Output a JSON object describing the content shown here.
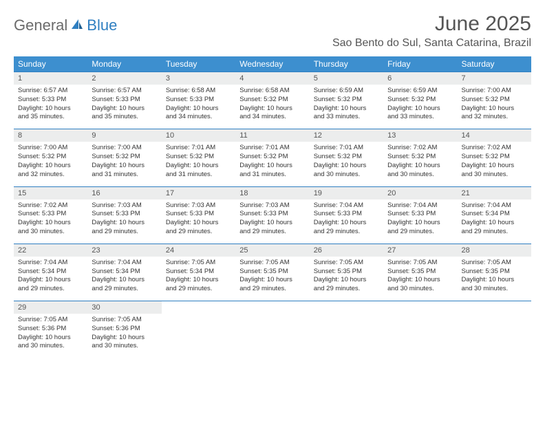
{
  "logo": {
    "text1": "General",
    "text2": "Blue"
  },
  "title": "June 2025",
  "location": "Sao Bento do Sul, Santa Catarina, Brazil",
  "header_bg": "#3d8fcf",
  "border_color": "#2f7fc1",
  "daynum_bg": "#eceded",
  "day_names": [
    "Sunday",
    "Monday",
    "Tuesday",
    "Wednesday",
    "Thursday",
    "Friday",
    "Saturday"
  ],
  "weeks": [
    [
      {
        "n": "1",
        "sr": "Sunrise: 6:57 AM",
        "ss": "Sunset: 5:33 PM",
        "d1": "Daylight: 10 hours",
        "d2": "and 35 minutes."
      },
      {
        "n": "2",
        "sr": "Sunrise: 6:57 AM",
        "ss": "Sunset: 5:33 PM",
        "d1": "Daylight: 10 hours",
        "d2": "and 35 minutes."
      },
      {
        "n": "3",
        "sr": "Sunrise: 6:58 AM",
        "ss": "Sunset: 5:33 PM",
        "d1": "Daylight: 10 hours",
        "d2": "and 34 minutes."
      },
      {
        "n": "4",
        "sr": "Sunrise: 6:58 AM",
        "ss": "Sunset: 5:32 PM",
        "d1": "Daylight: 10 hours",
        "d2": "and 34 minutes."
      },
      {
        "n": "5",
        "sr": "Sunrise: 6:59 AM",
        "ss": "Sunset: 5:32 PM",
        "d1": "Daylight: 10 hours",
        "d2": "and 33 minutes."
      },
      {
        "n": "6",
        "sr": "Sunrise: 6:59 AM",
        "ss": "Sunset: 5:32 PM",
        "d1": "Daylight: 10 hours",
        "d2": "and 33 minutes."
      },
      {
        "n": "7",
        "sr": "Sunrise: 7:00 AM",
        "ss": "Sunset: 5:32 PM",
        "d1": "Daylight: 10 hours",
        "d2": "and 32 minutes."
      }
    ],
    [
      {
        "n": "8",
        "sr": "Sunrise: 7:00 AM",
        "ss": "Sunset: 5:32 PM",
        "d1": "Daylight: 10 hours",
        "d2": "and 32 minutes."
      },
      {
        "n": "9",
        "sr": "Sunrise: 7:00 AM",
        "ss": "Sunset: 5:32 PM",
        "d1": "Daylight: 10 hours",
        "d2": "and 31 minutes."
      },
      {
        "n": "10",
        "sr": "Sunrise: 7:01 AM",
        "ss": "Sunset: 5:32 PM",
        "d1": "Daylight: 10 hours",
        "d2": "and 31 minutes."
      },
      {
        "n": "11",
        "sr": "Sunrise: 7:01 AM",
        "ss": "Sunset: 5:32 PM",
        "d1": "Daylight: 10 hours",
        "d2": "and 31 minutes."
      },
      {
        "n": "12",
        "sr": "Sunrise: 7:01 AM",
        "ss": "Sunset: 5:32 PM",
        "d1": "Daylight: 10 hours",
        "d2": "and 30 minutes."
      },
      {
        "n": "13",
        "sr": "Sunrise: 7:02 AM",
        "ss": "Sunset: 5:32 PM",
        "d1": "Daylight: 10 hours",
        "d2": "and 30 minutes."
      },
      {
        "n": "14",
        "sr": "Sunrise: 7:02 AM",
        "ss": "Sunset: 5:32 PM",
        "d1": "Daylight: 10 hours",
        "d2": "and 30 minutes."
      }
    ],
    [
      {
        "n": "15",
        "sr": "Sunrise: 7:02 AM",
        "ss": "Sunset: 5:33 PM",
        "d1": "Daylight: 10 hours",
        "d2": "and 30 minutes."
      },
      {
        "n": "16",
        "sr": "Sunrise: 7:03 AM",
        "ss": "Sunset: 5:33 PM",
        "d1": "Daylight: 10 hours",
        "d2": "and 29 minutes."
      },
      {
        "n": "17",
        "sr": "Sunrise: 7:03 AM",
        "ss": "Sunset: 5:33 PM",
        "d1": "Daylight: 10 hours",
        "d2": "and 29 minutes."
      },
      {
        "n": "18",
        "sr": "Sunrise: 7:03 AM",
        "ss": "Sunset: 5:33 PM",
        "d1": "Daylight: 10 hours",
        "d2": "and 29 minutes."
      },
      {
        "n": "19",
        "sr": "Sunrise: 7:04 AM",
        "ss": "Sunset: 5:33 PM",
        "d1": "Daylight: 10 hours",
        "d2": "and 29 minutes."
      },
      {
        "n": "20",
        "sr": "Sunrise: 7:04 AM",
        "ss": "Sunset: 5:33 PM",
        "d1": "Daylight: 10 hours",
        "d2": "and 29 minutes."
      },
      {
        "n": "21",
        "sr": "Sunrise: 7:04 AM",
        "ss": "Sunset: 5:34 PM",
        "d1": "Daylight: 10 hours",
        "d2": "and 29 minutes."
      }
    ],
    [
      {
        "n": "22",
        "sr": "Sunrise: 7:04 AM",
        "ss": "Sunset: 5:34 PM",
        "d1": "Daylight: 10 hours",
        "d2": "and 29 minutes."
      },
      {
        "n": "23",
        "sr": "Sunrise: 7:04 AM",
        "ss": "Sunset: 5:34 PM",
        "d1": "Daylight: 10 hours",
        "d2": "and 29 minutes."
      },
      {
        "n": "24",
        "sr": "Sunrise: 7:05 AM",
        "ss": "Sunset: 5:34 PM",
        "d1": "Daylight: 10 hours",
        "d2": "and 29 minutes."
      },
      {
        "n": "25",
        "sr": "Sunrise: 7:05 AM",
        "ss": "Sunset: 5:35 PM",
        "d1": "Daylight: 10 hours",
        "d2": "and 29 minutes."
      },
      {
        "n": "26",
        "sr": "Sunrise: 7:05 AM",
        "ss": "Sunset: 5:35 PM",
        "d1": "Daylight: 10 hours",
        "d2": "and 29 minutes."
      },
      {
        "n": "27",
        "sr": "Sunrise: 7:05 AM",
        "ss": "Sunset: 5:35 PM",
        "d1": "Daylight: 10 hours",
        "d2": "and 30 minutes."
      },
      {
        "n": "28",
        "sr": "Sunrise: 7:05 AM",
        "ss": "Sunset: 5:35 PM",
        "d1": "Daylight: 10 hours",
        "d2": "and 30 minutes."
      }
    ],
    [
      {
        "n": "29",
        "sr": "Sunrise: 7:05 AM",
        "ss": "Sunset: 5:36 PM",
        "d1": "Daylight: 10 hours",
        "d2": "and 30 minutes."
      },
      {
        "n": "30",
        "sr": "Sunrise: 7:05 AM",
        "ss": "Sunset: 5:36 PM",
        "d1": "Daylight: 10 hours",
        "d2": "and 30 minutes."
      },
      null,
      null,
      null,
      null,
      null
    ]
  ]
}
